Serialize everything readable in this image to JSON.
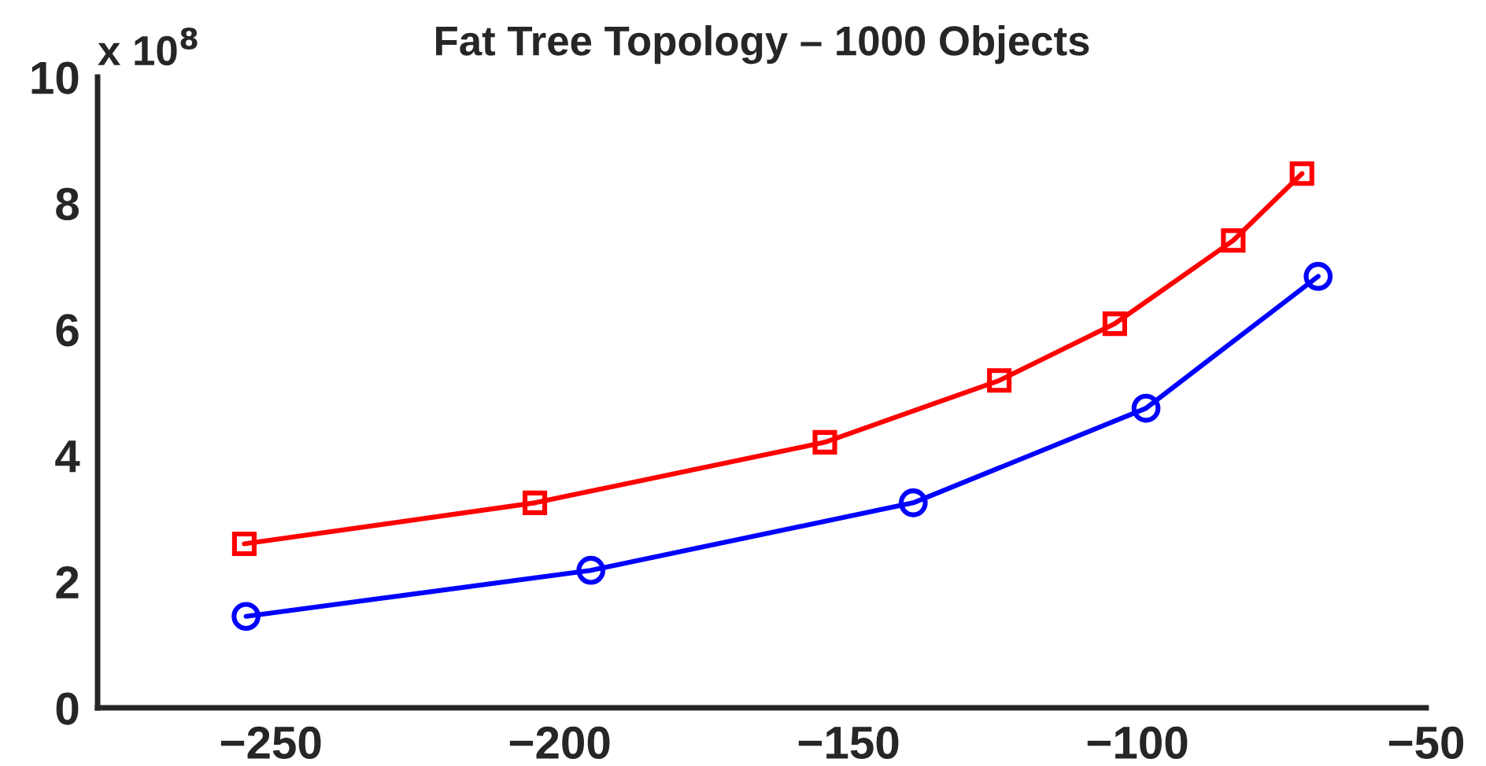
{
  "chart_data": {
    "type": "line",
    "title": "Fat Tree Topology – 1000 Objects",
    "annotations": [
      "x 10$^{8}$"
    ],
    "xlim": [
      -280,
      -50
    ],
    "xticks": [
      {
        "value": -250,
        "label": "−250"
      },
      {
        "value": -200,
        "label": "−200"
      },
      {
        "value": -150,
        "label": "−150"
      },
      {
        "value": -100,
        "label": "−100"
      },
      {
        "value": -50,
        "label": "−50"
      }
    ],
    "ylim": [
      0,
      10
    ],
    "yticks": [
      0,
      2,
      4,
      6,
      8,
      10
    ],
    "grid": false,
    "legend": false,
    "series": [
      {
        "color": "#ff0000",
        "marker": "square",
        "x": [
          -254.6,
          -204.3,
          -154.1,
          -123.9,
          -103.9,
          -83.4,
          -71.5
        ],
        "values": [
          2.6,
          3.25,
          4.21,
          5.19,
          6.09,
          7.41,
          8.47
        ]
      },
      {
        "color": "#0000ff",
        "marker": "circle",
        "x": [
          -254.3,
          -194.6,
          -138.8,
          -98.5,
          -68.7
        ],
        "values": [
          1.45,
          2.18,
          3.25,
          4.75,
          6.84
        ]
      }
    ]
  }
}
